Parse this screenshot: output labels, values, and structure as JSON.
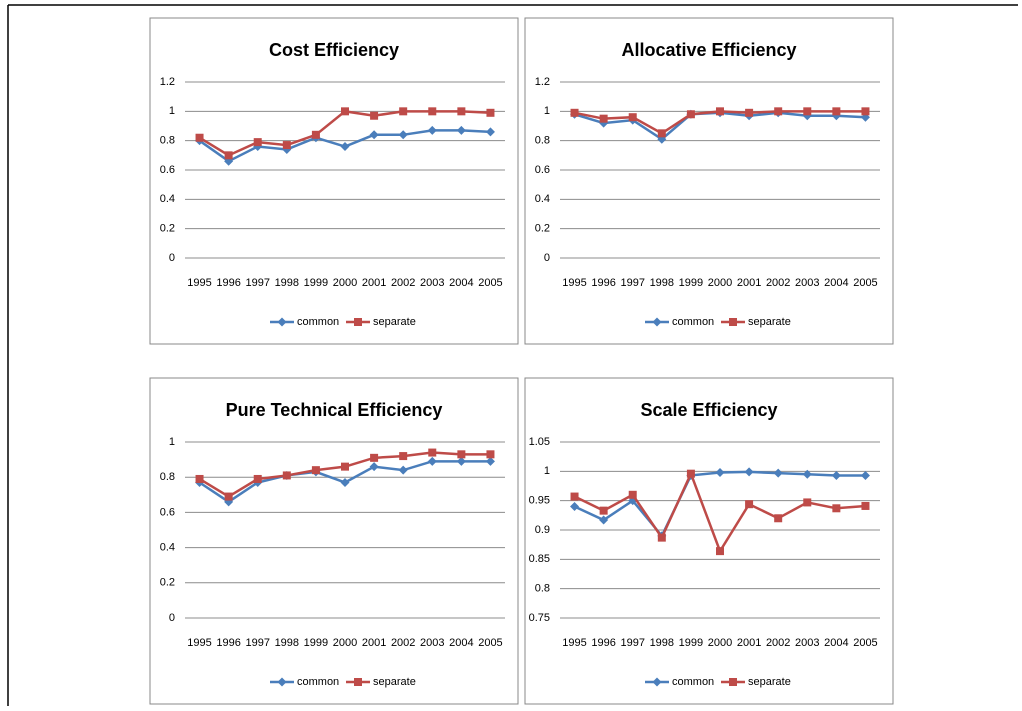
{
  "chart_data": [
    {
      "type": "line",
      "title": "Cost Efficiency",
      "categories": [
        "1995",
        "1996",
        "1997",
        "1998",
        "1999",
        "2000",
        "2001",
        "2002",
        "2003",
        "2004",
        "2005"
      ],
      "ylim": [
        0,
        1.2
      ],
      "yticks": [
        0,
        0.2,
        0.4,
        0.6,
        0.8,
        1,
        1.2
      ],
      "grid": true,
      "legend": "bottom",
      "series": [
        {
          "name": "common",
          "color": "#4a7ebb",
          "values": [
            0.8,
            0.66,
            0.76,
            0.74,
            0.82,
            0.76,
            0.84,
            0.84,
            0.87,
            0.87,
            0.86
          ]
        },
        {
          "name": "separate",
          "color": "#be4b48",
          "values": [
            0.82,
            0.7,
            0.79,
            0.77,
            0.84,
            1.0,
            0.97,
            1.0,
            1.0,
            1.0,
            0.99
          ]
        }
      ]
    },
    {
      "type": "line",
      "title": "Allocative Efficiency",
      "categories": [
        "1995",
        "1996",
        "1997",
        "1998",
        "1999",
        "2000",
        "2001",
        "2002",
        "2003",
        "2004",
        "2005"
      ],
      "ylim": [
        0,
        1.2
      ],
      "yticks": [
        0,
        0.2,
        0.4,
        0.6,
        0.8,
        1,
        1.2
      ],
      "grid": true,
      "legend": "bottom",
      "series": [
        {
          "name": "common",
          "color": "#4a7ebb",
          "values": [
            0.98,
            0.92,
            0.94,
            0.81,
            0.98,
            0.99,
            0.97,
            0.99,
            0.97,
            0.97,
            0.96
          ]
        },
        {
          "name": "separate",
          "color": "#be4b48",
          "values": [
            0.99,
            0.95,
            0.96,
            0.85,
            0.98,
            1.0,
            0.99,
            1.0,
            1.0,
            1.0,
            1.0
          ]
        }
      ]
    },
    {
      "type": "line",
      "title": "Pure Technical Efficiency",
      "categories": [
        "1995",
        "1996",
        "1997",
        "1998",
        "1999",
        "2000",
        "2001",
        "2002",
        "2003",
        "2004",
        "2005"
      ],
      "ylim": [
        0,
        1
      ],
      "yticks": [
        0,
        0.2,
        0.4,
        0.6,
        0.8,
        1
      ],
      "grid": true,
      "legend": "bottom",
      "series": [
        {
          "name": "common",
          "color": "#4a7ebb",
          "values": [
            0.77,
            0.66,
            0.77,
            0.81,
            0.83,
            0.77,
            0.86,
            0.84,
            0.89,
            0.89,
            0.89
          ]
        },
        {
          "name": "separate",
          "color": "#be4b48",
          "values": [
            0.79,
            0.69,
            0.79,
            0.81,
            0.84,
            0.86,
            0.91,
            0.92,
            0.94,
            0.93,
            0.93
          ]
        }
      ]
    },
    {
      "type": "line",
      "title": "Scale Efficiency",
      "categories": [
        "1995",
        "1996",
        "1997",
        "1998",
        "1999",
        "2000",
        "2001",
        "2002",
        "2003",
        "2004",
        "2005"
      ],
      "ylim": [
        0.75,
        1.05
      ],
      "yticks": [
        0.75,
        0.8,
        0.85,
        0.9,
        0.95,
        1,
        1.05
      ],
      "grid": true,
      "legend": "bottom",
      "series": [
        {
          "name": "common",
          "color": "#4a7ebb",
          "values": [
            0.94,
            0.917,
            0.95,
            0.89,
            0.993,
            0.998,
            0.999,
            0.997,
            0.995,
            0.993,
            0.993
          ]
        },
        {
          "name": "separate",
          "color": "#be4b48",
          "values": [
            0.957,
            0.933,
            0.96,
            0.887,
            0.996,
            0.864,
            0.944,
            0.92,
            0.947,
            0.937,
            0.941
          ]
        }
      ]
    }
  ]
}
